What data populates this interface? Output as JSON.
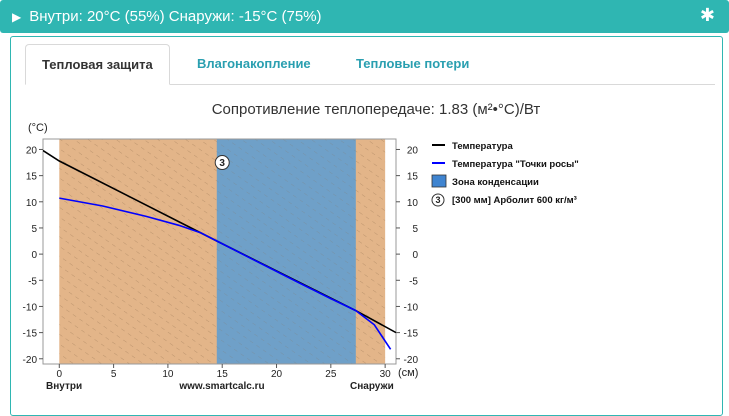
{
  "header": {
    "title": "Внутри: 20°C (55%) Снаружи: -15°C (75%)",
    "arrow_icon": "caret-right-icon",
    "settings_icon": "asterisk-icon"
  },
  "tabs": [
    {
      "label": "Тепловая защита",
      "active": true
    },
    {
      "label": "Влагонакопление",
      "active": false
    },
    {
      "label": "Тепловые потери",
      "active": false
    }
  ],
  "chart_data": {
    "type": "line",
    "title": "Сопротивление теплопередаче: 1.83 (м²•°С)/Вт",
    "ylabel": "(°C)",
    "xlabel": "(см)",
    "x_left_label": "Внутри",
    "x_center_label": "www.smartcalc.ru",
    "x_right_label": "Снаружи",
    "xlim": [
      -1.5,
      31
    ],
    "ylim": [
      -21,
      22
    ],
    "xticks": [
      0,
      5,
      10,
      15,
      20,
      25,
      30
    ],
    "yticks": [
      20,
      15,
      10,
      5,
      0,
      -5,
      -10,
      -15,
      -20
    ],
    "wall": {
      "start": 0,
      "end": 30,
      "color": "#e3b589"
    },
    "condensation_zone": {
      "start": 14.5,
      "end": 27.3,
      "color": "#6fa0c8"
    },
    "layer_marker": {
      "number": "3",
      "x": 15.0,
      "y": 17.5
    },
    "series": [
      {
        "name": "Температура",
        "color": "#000000",
        "x": [
          -1.5,
          0,
          14.5,
          27.3,
          31
        ],
        "y": [
          19.8,
          17.8,
          2.5,
          -10.8,
          -15.0
        ]
      },
      {
        "name": "Температура \"Точки росы\"",
        "color": "#0000ff",
        "x": [
          0,
          4,
          8,
          11,
          13,
          14.5,
          18,
          22,
          25,
          27.3,
          29,
          30.5
        ],
        "y": [
          10.7,
          9.2,
          7.2,
          5.5,
          4.1,
          2.5,
          -1.2,
          -5.4,
          -8.5,
          -10.8,
          -13.5,
          -18.2
        ]
      }
    ],
    "legend": {
      "placement": "right",
      "items": [
        {
          "kind": "line",
          "label": "Температура",
          "color": "#000000"
        },
        {
          "kind": "line",
          "label": "Температура \"Точки росы\"",
          "color": "#0000ff"
        },
        {
          "kind": "box",
          "label": "Зона конденсации",
          "color": "#3f84d0"
        },
        {
          "kind": "marker",
          "marker": "3",
          "label": "[300 мм] Арболит 600 кг/м³"
        }
      ]
    }
  }
}
